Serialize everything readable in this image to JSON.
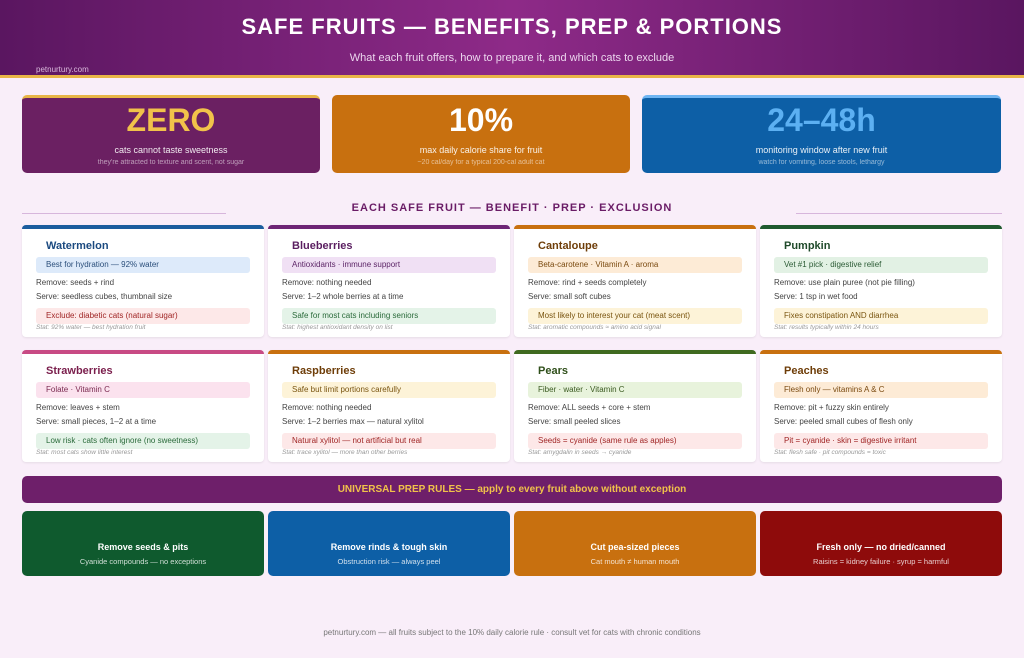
{
  "header": {
    "title": "SAFE FRUITS — BENEFITS, PREP & PORTIONS",
    "subtitle": "What each fruit offers, how to prepare it, and which cats to exclude",
    "source": "petnurtury.com"
  },
  "stats": [
    {
      "value": "ZERO",
      "caption": "cats cannot taste sweetness",
      "note": "they're attracted to texture and scent, not sugar"
    },
    {
      "value": "10%",
      "caption": "max daily calorie share for fruit",
      "note": "~20 cal/day for a typical 200-cal adult cat"
    },
    {
      "value": "24–48h",
      "caption": "monitoring window after new fruit",
      "note": "watch for vomiting, loose stools, lethargy"
    }
  ],
  "section_title": "EACH SAFE FRUIT — BENEFIT · PREP · EXCLUSION",
  "fruits": [
    {
      "name": "Watermelon",
      "benefit": "Best for hydration — 92% water",
      "remove": "Remove: seeds + rind",
      "serve": "Serve: seedless cubes, thumbnail size",
      "note": "Exclude: diabetic cats (natural sugar)",
      "stat": "Stat: 92% water — best hydration fruit"
    },
    {
      "name": "Blueberries",
      "benefit": "Antioxidants · immune support",
      "remove": "Remove: nothing needed",
      "serve": "Serve: 1–2 whole berries at a time",
      "note": "Safe for most cats including seniors",
      "stat": "Stat: highest antioxidant density on list"
    },
    {
      "name": "Cantaloupe",
      "benefit": "Beta-carotene · Vitamin A · aroma",
      "remove": "Remove: rind + seeds completely",
      "serve": "Serve: small soft cubes",
      "note": "Most likely to interest your cat (meat scent)",
      "stat": "Stat: aromatic compounds ≈ amino acid signal"
    },
    {
      "name": "Pumpkin",
      "benefit": "Vet #1 pick · digestive relief",
      "remove": "Remove: use plain puree (not pie filling)",
      "serve": "Serve: 1 tsp in wet food",
      "note": "Fixes constipation AND diarrhea",
      "stat": "Stat: results typically within 24 hours"
    },
    {
      "name": "Strawberries",
      "benefit": "Folate · Vitamin C",
      "remove": "Remove: leaves + stem",
      "serve": "Serve: small pieces, 1–2 at a time",
      "note": "Low risk · cats often ignore (no sweetness)",
      "stat": "Stat: most cats show little interest"
    },
    {
      "name": "Raspberries",
      "benefit": "Safe but limit portions carefully",
      "remove": "Remove: nothing needed",
      "serve": "Serve: 1–2 berries max — natural xylitol",
      "note": "Natural xylitol — not artificial but real",
      "stat": "Stat: trace xylitol — more than other berries"
    },
    {
      "name": "Pears",
      "benefit": "Fiber · water · Vitamin C",
      "remove": "Remove: ALL seeds + core + stem",
      "serve": "Serve: small peeled slices",
      "note": "Seeds = cyanide (same rule as apples)",
      "stat": "Stat: amygdalin in seeds → cyanide"
    },
    {
      "name": "Peaches",
      "benefit": "Flesh only — vitamins A & C",
      "remove": "Remove: pit + fuzzy skin entirely",
      "serve": "Serve: peeled small cubes of flesh only",
      "note": "Pit = cyanide · skin = digestive irritant",
      "stat": "Stat: flesh safe · pit compounds = toxic"
    }
  ],
  "rules_banner": "UNIVERSAL PREP RULES — apply to every fruit above without exception",
  "rules": [
    {
      "title": "Remove seeds & pits",
      "text": "Cyanide compounds — no exceptions"
    },
    {
      "title": "Remove rinds & tough skin",
      "text": "Obstruction risk — always peel"
    },
    {
      "title": "Cut pea-sized pieces",
      "text": "Cat mouth ≠ human mouth"
    },
    {
      "title": "Fresh only — no dried/canned",
      "text": "Raisins = kidney failure · syrup = harmful"
    }
  ],
  "footer": "petnurtury.com — all fruits subject to the 10% daily calorie rule · consult vet for cats with chronic conditions"
}
